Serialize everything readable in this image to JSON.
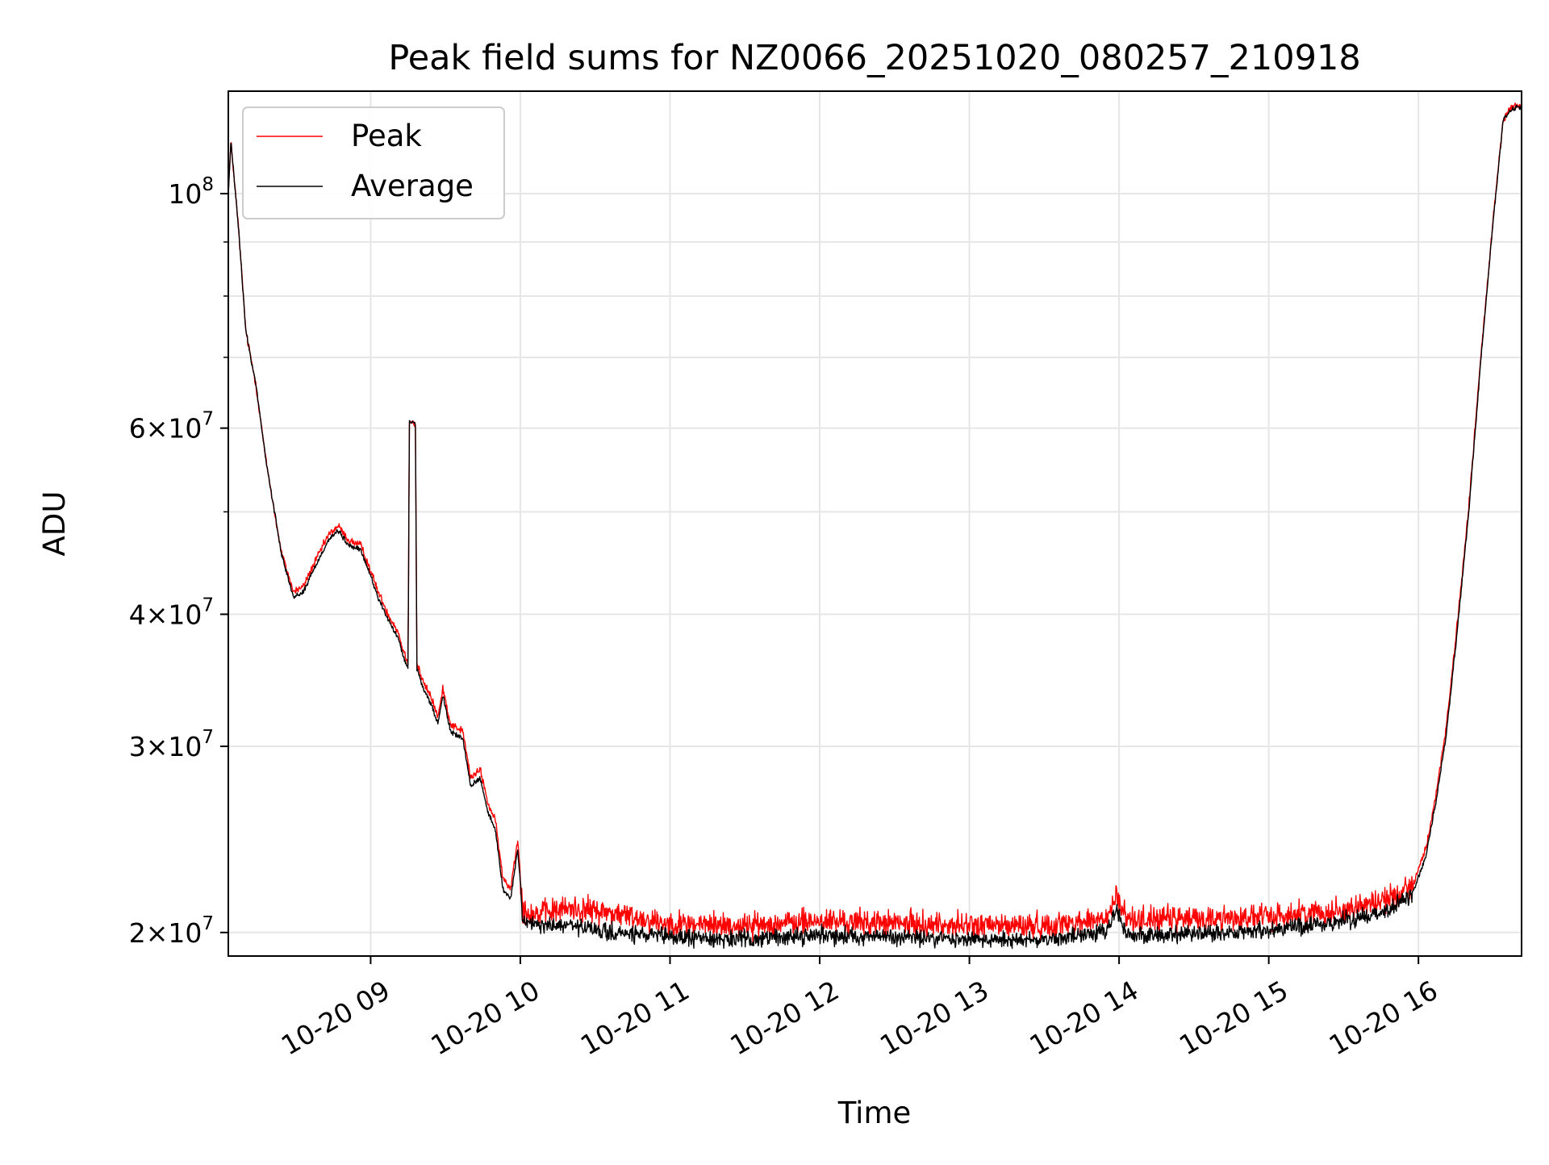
{
  "chart_data": {
    "type": "line",
    "title": "Peak field sums for NZ0066_20251020_080257_210918",
    "xlabel": "Time",
    "ylabel": "ADU",
    "yscale": "log",
    "ylim": [
      19000000,
      125000000
    ],
    "xlim": [
      "2025-10-20 08:02:57",
      "2025-10-20 16:41:20"
    ],
    "grid": true,
    "legend_position": "upper-left",
    "x_ticks": [
      {
        "time": "2025-10-20 09:00",
        "label": "10-20 09"
      },
      {
        "time": "2025-10-20 10:00",
        "label": "10-20 10"
      },
      {
        "time": "2025-10-20 11:00",
        "label": "10-20 11"
      },
      {
        "time": "2025-10-20 12:00",
        "label": "10-20 12"
      },
      {
        "time": "2025-10-20 13:00",
        "label": "10-20 13"
      },
      {
        "time": "2025-10-20 14:00",
        "label": "10-20 14"
      },
      {
        "time": "2025-10-20 15:00",
        "label": "10-20 15"
      },
      {
        "time": "2025-10-20 16:00",
        "label": "10-20 16"
      }
    ],
    "y_ticks": [
      {
        "value": 100000000,
        "mantissa": "",
        "exp": "8",
        "base": "10"
      },
      {
        "value": 60000000,
        "mantissa": "6×",
        "exp": "7",
        "base": "10"
      },
      {
        "value": 40000000,
        "mantissa": "4×",
        "exp": "7",
        "base": "10"
      },
      {
        "value": 30000000,
        "mantissa": "3×",
        "exp": "7",
        "base": "10"
      },
      {
        "value": 20000000,
        "mantissa": "2×",
        "exp": "7",
        "base": "10"
      }
    ],
    "series": [
      {
        "name": "Peak",
        "color": "#ff0000",
        "noise": 0.018,
        "points": [
          [
            "2025-10-20 08:02:57",
            100000000
          ],
          [
            "2025-10-20 08:04",
            112000000
          ],
          [
            "2025-10-20 08:07",
            93000000
          ],
          [
            "2025-10-20 08:10",
            74000000
          ],
          [
            "2025-10-20 08:14",
            66000000
          ],
          [
            "2025-10-20 08:18",
            56000000
          ],
          [
            "2025-10-20 08:24",
            46000000
          ],
          [
            "2025-10-20 08:29",
            42000000
          ],
          [
            "2025-10-20 08:33",
            42500000
          ],
          [
            "2025-10-20 08:38",
            45000000
          ],
          [
            "2025-10-20 08:43",
            47500000
          ],
          [
            "2025-10-20 08:47",
            48500000
          ],
          [
            "2025-10-20 08:51",
            47000000
          ],
          [
            "2025-10-20 08:56",
            46500000
          ],
          [
            "2025-10-20 09:00",
            44000000
          ],
          [
            "2025-10-20 09:03",
            42000000
          ],
          [
            "2025-10-20 09:07",
            40000000
          ],
          [
            "2025-10-20 09:11",
            38500000
          ],
          [
            "2025-10-20 09:13",
            37000000
          ],
          [
            "2025-10-20 09:15",
            36000000
          ],
          [
            "2025-10-20 09:15:30",
            61000000
          ],
          [
            "2025-10-20 09:18",
            60500000
          ],
          [
            "2025-10-20 09:18:30",
            36000000
          ],
          [
            "2025-10-20 09:21",
            34500000
          ],
          [
            "2025-10-20 09:24",
            33500000
          ],
          [
            "2025-10-20 09:27",
            32000000
          ],
          [
            "2025-10-20 09:29",
            34000000
          ],
          [
            "2025-10-20 09:32",
            31500000
          ],
          [
            "2025-10-20 09:37",
            31000000
          ],
          [
            "2025-10-20 09:40",
            28000000
          ],
          [
            "2025-10-20 09:44",
            28500000
          ],
          [
            "2025-10-20 09:47",
            26500000
          ],
          [
            "2025-10-20 09:50",
            25500000
          ],
          [
            "2025-10-20 09:53",
            22500000
          ],
          [
            "2025-10-20 09:56",
            22000000
          ],
          [
            "2025-10-20 09:59",
            24500000
          ],
          [
            "2025-10-20 10:01",
            21000000
          ],
          [
            "2025-10-20 10:06",
            20800000
          ],
          [
            "2025-10-20 10:20",
            21100000
          ],
          [
            "2025-10-20 10:35",
            20900000
          ],
          [
            "2025-10-20 11:00",
            20400000
          ],
          [
            "2025-10-20 11:30",
            20300000
          ],
          [
            "2025-10-20 12:00",
            20500000
          ],
          [
            "2025-10-20 12:30",
            20400000
          ],
          [
            "2025-10-20 13:00",
            20300000
          ],
          [
            "2025-10-20 13:30",
            20300000
          ],
          [
            "2025-10-20 13:55",
            20600000
          ],
          [
            "2025-10-20 13:59",
            21600000
          ],
          [
            "2025-10-20 14:03",
            20600000
          ],
          [
            "2025-10-20 14:30",
            20600000
          ],
          [
            "2025-10-20 15:00",
            20700000
          ],
          [
            "2025-10-20 15:30",
            21000000
          ],
          [
            "2025-10-20 15:50",
            21600000
          ],
          [
            "2025-10-20 15:58",
            22300000
          ],
          [
            "2025-10-20 16:03",
            24000000
          ],
          [
            "2025-10-20 16:07",
            27000000
          ],
          [
            "2025-10-20 16:11",
            31000000
          ],
          [
            "2025-10-20 16:15",
            38000000
          ],
          [
            "2025-10-20 16:20",
            50000000
          ],
          [
            "2025-10-20 16:25",
            70000000
          ],
          [
            "2025-10-20 16:30",
            95000000
          ],
          [
            "2025-10-20 16:34",
            118000000
          ],
          [
            "2025-10-20 16:38",
            121000000
          ],
          [
            "2025-10-20 16:41:20",
            121000000
          ]
        ]
      },
      {
        "name": "Average",
        "color": "#000000",
        "noise": 0.012,
        "points": [
          [
            "2025-10-20 08:02:57",
            100000000
          ],
          [
            "2025-10-20 08:04",
            112000000
          ],
          [
            "2025-10-20 08:07",
            93000000
          ],
          [
            "2025-10-20 08:10",
            74000000
          ],
          [
            "2025-10-20 08:14",
            66000000
          ],
          [
            "2025-10-20 08:18",
            56000000
          ],
          [
            "2025-10-20 08:24",
            46000000
          ],
          [
            "2025-10-20 08:29",
            41500000
          ],
          [
            "2025-10-20 08:33",
            42000000
          ],
          [
            "2025-10-20 08:38",
            44500000
          ],
          [
            "2025-10-20 08:43",
            47000000
          ],
          [
            "2025-10-20 08:47",
            48000000
          ],
          [
            "2025-10-20 08:51",
            46500000
          ],
          [
            "2025-10-20 08:56",
            46000000
          ],
          [
            "2025-10-20 09:00",
            43500000
          ],
          [
            "2025-10-20 09:03",
            41500000
          ],
          [
            "2025-10-20 09:07",
            39500000
          ],
          [
            "2025-10-20 09:11",
            38000000
          ],
          [
            "2025-10-20 09:13",
            36500000
          ],
          [
            "2025-10-20 09:15",
            35500000
          ],
          [
            "2025-10-20 09:15:30",
            61000000
          ],
          [
            "2025-10-20 09:18",
            60500000
          ],
          [
            "2025-10-20 09:18:30",
            35500000
          ],
          [
            "2025-10-20 09:21",
            34000000
          ],
          [
            "2025-10-20 09:24",
            33000000
          ],
          [
            "2025-10-20 09:27",
            31500000
          ],
          [
            "2025-10-20 09:29",
            33500000
          ],
          [
            "2025-10-20 09:32",
            31000000
          ],
          [
            "2025-10-20 09:37",
            30500000
          ],
          [
            "2025-10-20 09:40",
            27500000
          ],
          [
            "2025-10-20 09:44",
            28000000
          ],
          [
            "2025-10-20 09:47",
            26000000
          ],
          [
            "2025-10-20 09:50",
            25000000
          ],
          [
            "2025-10-20 09:53",
            22000000
          ],
          [
            "2025-10-20 09:56",
            21500000
          ],
          [
            "2025-10-20 09:59",
            24000000
          ],
          [
            "2025-10-20 10:01",
            20500000
          ],
          [
            "2025-10-20 10:06",
            20300000
          ],
          [
            "2025-10-20 10:20",
            20300000
          ],
          [
            "2025-10-20 10:35",
            20000000
          ],
          [
            "2025-10-20 11:00",
            19800000
          ],
          [
            "2025-10-20 11:30",
            19700000
          ],
          [
            "2025-10-20 12:00",
            19900000
          ],
          [
            "2025-10-20 12:30",
            19800000
          ],
          [
            "2025-10-20 13:00",
            19700000
          ],
          [
            "2025-10-20 13:30",
            19700000
          ],
          [
            "2025-10-20 13:55",
            20000000
          ],
          [
            "2025-10-20 13:59",
            21100000
          ],
          [
            "2025-10-20 14:03",
            19900000
          ],
          [
            "2025-10-20 14:30",
            19900000
          ],
          [
            "2025-10-20 15:00",
            20100000
          ],
          [
            "2025-10-20 15:30",
            20500000
          ],
          [
            "2025-10-20 15:50",
            21100000
          ],
          [
            "2025-10-20 15:58",
            21900000
          ],
          [
            "2025-10-20 16:03",
            23600000
          ],
          [
            "2025-10-20 16:07",
            26600000
          ],
          [
            "2025-10-20 16:11",
            30600000
          ],
          [
            "2025-10-20 16:15",
            37500000
          ],
          [
            "2025-10-20 16:20",
            49500000
          ],
          [
            "2025-10-20 16:25",
            69500000
          ],
          [
            "2025-10-20 16:30",
            94500000
          ],
          [
            "2025-10-20 16:34",
            117500000
          ],
          [
            "2025-10-20 16:38",
            120500000
          ],
          [
            "2025-10-20 16:41:20",
            120500000
          ]
        ]
      }
    ]
  }
}
